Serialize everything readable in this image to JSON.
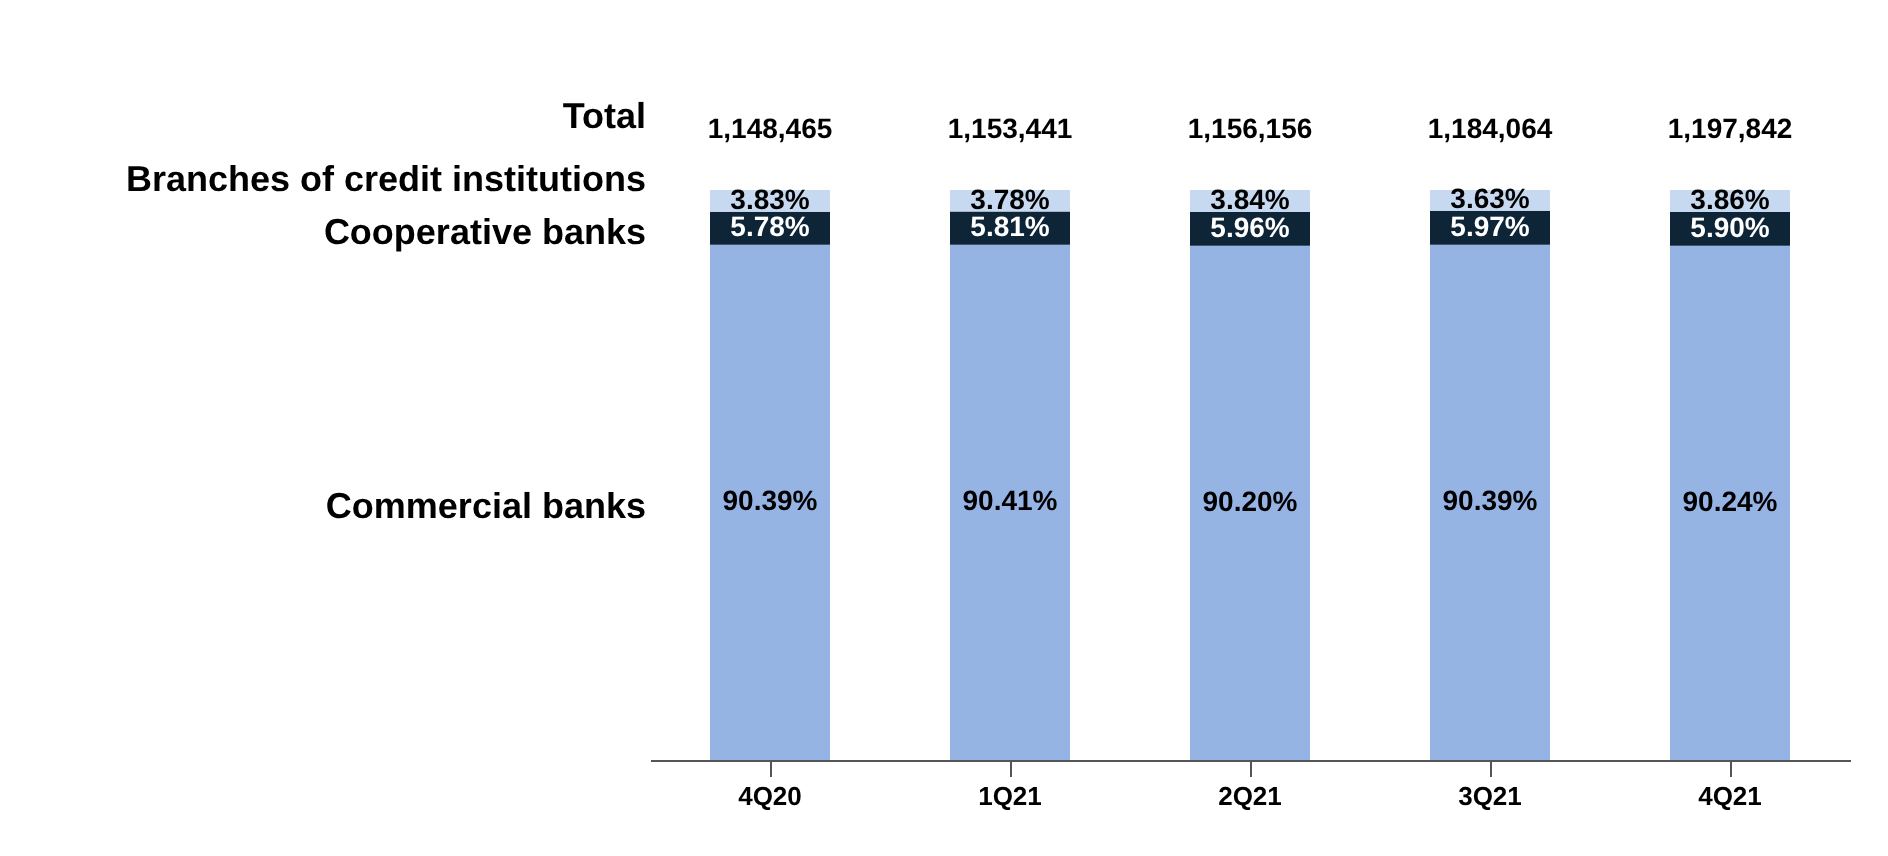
{
  "chart_data": {
    "type": "bar",
    "stacked": true,
    "grid": false,
    "legend": false,
    "tick_labels": "x",
    "categories": [
      "4Q20",
      "1Q21",
      "2Q21",
      "3Q21",
      "4Q21"
    ],
    "series": [
      {
        "name": "Commercial banks",
        "color": "#95b3e3",
        "values": [
          90.39,
          90.41,
          90.2,
          90.39,
          90.24
        ],
        "value_labels": [
          "90.39%",
          "90.41%",
          "90.20%",
          "90.39%",
          "90.24%"
        ]
      },
      {
        "name": "Cooperative banks",
        "color": "#0e2537",
        "values": [
          5.78,
          5.81,
          5.96,
          5.97,
          5.9
        ],
        "value_labels": [
          "5.78%",
          "5.81%",
          "5.96%",
          "5.97%",
          "5.90%"
        ]
      },
      {
        "name": "Branches of credit institutions",
        "color": "#c6d9f1",
        "values": [
          3.83,
          3.78,
          3.84,
          3.63,
          3.86
        ],
        "value_labels": [
          "3.83%",
          "3.78%",
          "3.84%",
          "3.63%",
          "3.86%"
        ]
      }
    ],
    "annotations": [
      "Total",
      "1,148,465",
      "1,153,441",
      "1,156,156",
      "1,184,064",
      "1,197,842"
    ]
  }
}
